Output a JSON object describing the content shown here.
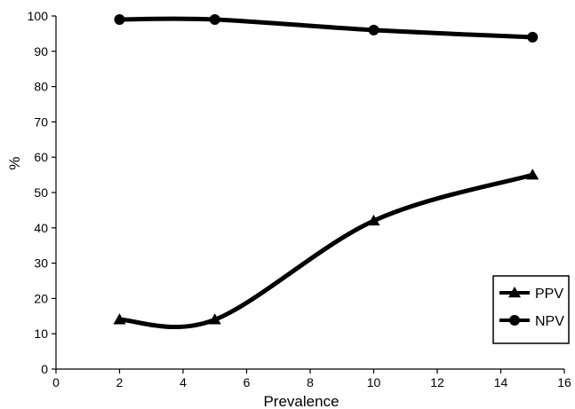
{
  "chart_data": {
    "type": "line",
    "title": "",
    "xlabel": "Prevalence",
    "ylabel": "%",
    "xlim": [
      0,
      16
    ],
    "ylim": [
      0,
      100
    ],
    "x_ticks": [
      "0",
      "2",
      "4",
      "6",
      "8",
      "10",
      "12",
      "14",
      "16"
    ],
    "y_ticks": [
      "0",
      "10",
      "20",
      "30",
      "40",
      "50",
      "60",
      "70",
      "80",
      "90",
      "100"
    ],
    "grid": false,
    "smooth": true,
    "legend_position": "bottom-right",
    "series": [
      {
        "name": "PPV",
        "marker": "triangle",
        "color": "#000000",
        "x": [
          2,
          5,
          10,
          15
        ],
        "y": [
          14,
          14,
          42,
          55
        ]
      },
      {
        "name": "NPV",
        "marker": "circle",
        "color": "#000000",
        "x": [
          2,
          5,
          10,
          15
        ],
        "y": [
          99,
          99,
          96,
          94
        ]
      }
    ]
  }
}
